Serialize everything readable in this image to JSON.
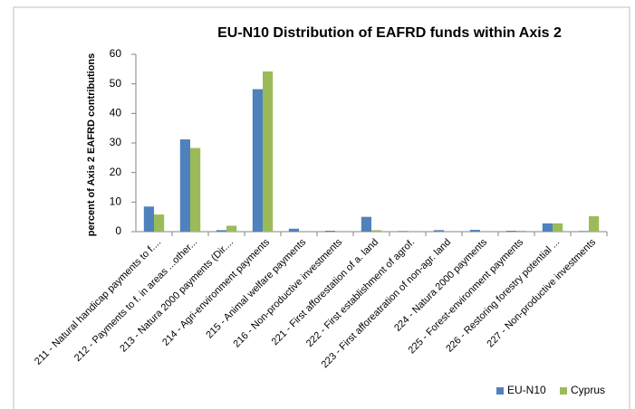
{
  "chart_data": {
    "type": "bar",
    "title": "EU-N10 Distribution of EAFRD funds within Axis 2",
    "y_label": "percent of Axis 2 EAFRD contributions",
    "categories": [
      "211 - Natural handicap payments to f....",
      "212 - Payments to f. in areas ...other...",
      "213 - Natura 2000 payments (Dir....",
      "214 - Agri-environment payments",
      "215 - Animal welfare payments",
      "216 - Non-productive investments",
      "221 - First afforestation of a. land",
      "222 - First establishment of agrof.",
      "223 - First afforeatration of non-agr. land",
      "224 - Natura 2000 payments",
      "225 - Forest-environment payments",
      "226 - Restoring forestry potential ...",
      "227 - Non-productive investments"
    ],
    "series": [
      {
        "name": "EU-N10",
        "color": "#4f81bd",
        "values": [
          8.5,
          31.2,
          0.5,
          48.2,
          1.0,
          0.3,
          5.0,
          0.2,
          0.5,
          0.6,
          0.3,
          2.8,
          0.2
        ]
      },
      {
        "name": "Cyprus",
        "color": "#9bbb59",
        "values": [
          5.8,
          28.3,
          2.0,
          54.2,
          0,
          0,
          0.5,
          0,
          0,
          0,
          0.3,
          2.8,
          5.2
        ]
      }
    ],
    "ylim": [
      0,
      60
    ],
    "yticks": [
      0,
      10,
      20,
      30,
      40,
      50,
      60
    ],
    "grid": false,
    "legend": "bottom-right"
  }
}
